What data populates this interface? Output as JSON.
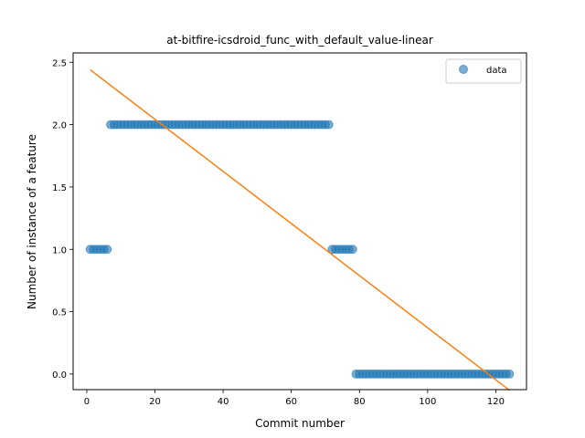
{
  "chart_data": {
    "type": "scatter",
    "title": "at-bitfire-icsdroid_func_with_default_value-linear",
    "xlabel": "Commit number",
    "ylabel": "Number of instance of a feature",
    "xlim": [
      -4,
      129
    ],
    "ylim": [
      -0.125,
      2.575
    ],
    "xticks": [
      0,
      20,
      40,
      60,
      80,
      100,
      120
    ],
    "yticks": [
      0.0,
      0.5,
      1.0,
      1.5,
      2.0,
      2.5
    ],
    "xtick_labels": [
      "0",
      "20",
      "40",
      "60",
      "80",
      "100",
      "120"
    ],
    "ytick_labels": [
      "0.0",
      "0.5",
      "1.0",
      "1.5",
      "2.0",
      "2.5"
    ],
    "grid": false,
    "legend_position": "top-right",
    "series": [
      {
        "name": "data",
        "kind": "scatter",
        "color": "#1f77b4",
        "segments": [
          {
            "x_from": 1,
            "x_to": 6,
            "y": 1
          },
          {
            "x_from": 7,
            "x_to": 71,
            "y": 2
          },
          {
            "x_from": 72,
            "x_to": 78,
            "y": 1
          },
          {
            "x_from": 79,
            "x_to": 124,
            "y": 0
          }
        ]
      },
      {
        "kind": "line",
        "color": "#ff7f0e",
        "points": [
          [
            1,
            2.44
          ],
          [
            124,
            -0.13
          ]
        ]
      }
    ]
  }
}
